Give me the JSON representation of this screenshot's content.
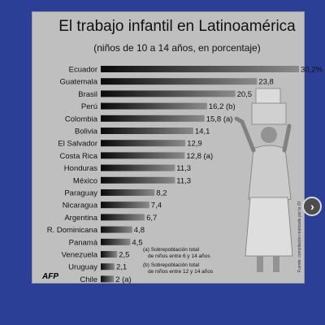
{
  "chart_data": {
    "type": "bar",
    "orientation": "horizontal",
    "title": "El trabajo infantil en Latinoamérica",
    "subtitle": "(niños de 10 a 14 años, en porcentaje)",
    "categories": [
      "Ecuador",
      "Guatemala",
      "Brasil",
      "Perú",
      "Colombia",
      "Bolivia",
      "El Salvador",
      "Costa Rica",
      "Honduras",
      "México",
      "Paraguay",
      "Nicaragua",
      "Argentina",
      "R. Dominicana",
      "Panamá",
      "Venezuela",
      "Uruguay",
      "Chile"
    ],
    "values": [
      30.2,
      23.8,
      20.5,
      16.2,
      15.8,
      14.1,
      12.9,
      12.8,
      11.3,
      11.3,
      8.2,
      7.4,
      6.7,
      4.8,
      4.5,
      2.5,
      2.1,
      2
    ],
    "value_labels": [
      "30,2%",
      "23,8",
      "20,5",
      "16,2 (b)",
      "15,8 (a)",
      "14,1",
      "12,9",
      "12,8 (a)",
      "11,3",
      "11,3",
      "8,2",
      "7,4",
      "6,7",
      "4,8",
      "4,5",
      "2,5",
      "2,1",
      "2 (a)"
    ],
    "notes": [
      "(a) Sobrepoblación total",
      "de niños entre 6 y 14 años",
      "(b) Sobrepoblación total",
      "de niños entre 12 y 14 años"
    ],
    "source_logo": "AFP",
    "source_side": "Fuente: compilación realizada por la OI",
    "colors": {
      "bar_dark": "#111111",
      "bar_light": "#9a9a9a",
      "background": "#bfbfbf"
    }
  },
  "ui": {
    "next_icon": "chevron-right-icon",
    "next_glyph": "›"
  }
}
